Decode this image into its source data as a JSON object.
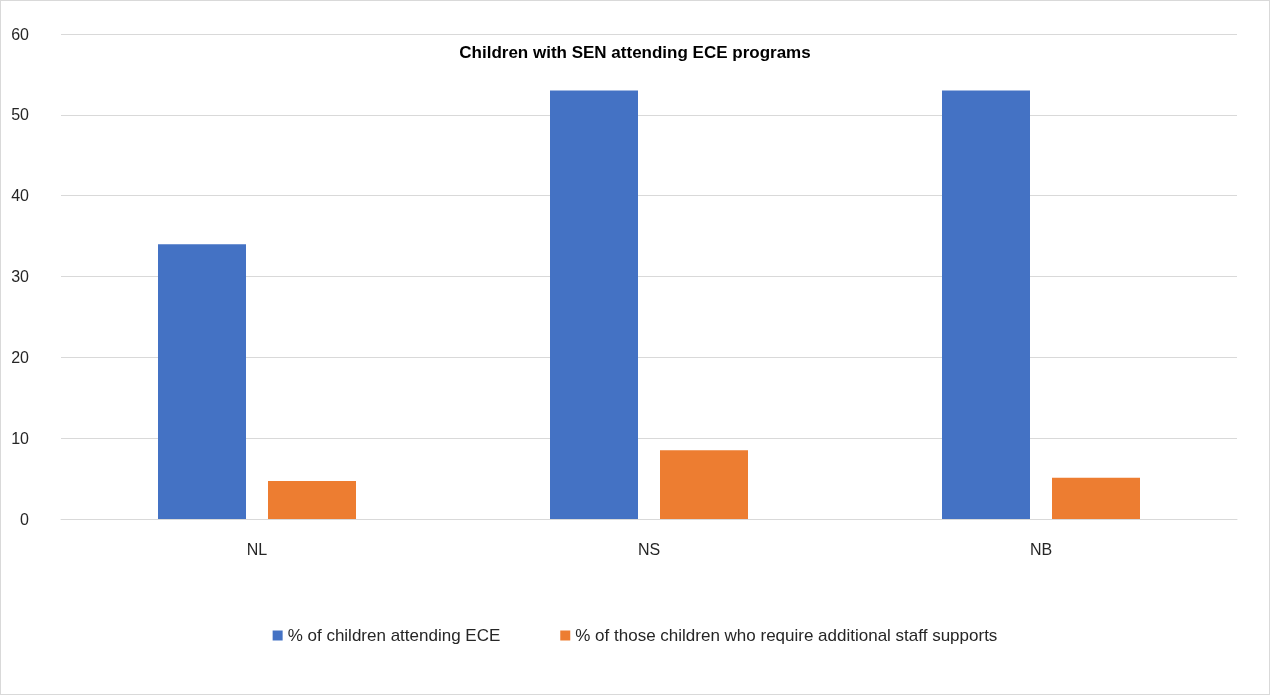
{
  "chart_data": {
    "type": "bar",
    "title": "Children with SEN attending ECE programs",
    "categories": [
      "NL",
      "NS",
      "NB"
    ],
    "series": [
      {
        "name": "% of children attending ECE",
        "color": "#4472c4",
        "values": [
          34,
          53,
          53
        ]
      },
      {
        "name": "% of those children who require additional staff supports",
        "color": "#ed7d31",
        "values": [
          4.7,
          8.5,
          5.1
        ]
      }
    ],
    "ylim": [
      0,
      60
    ],
    "yticks": [
      0,
      10,
      20,
      30,
      40,
      50,
      60
    ],
    "grid": "y",
    "legend": "bottom"
  }
}
